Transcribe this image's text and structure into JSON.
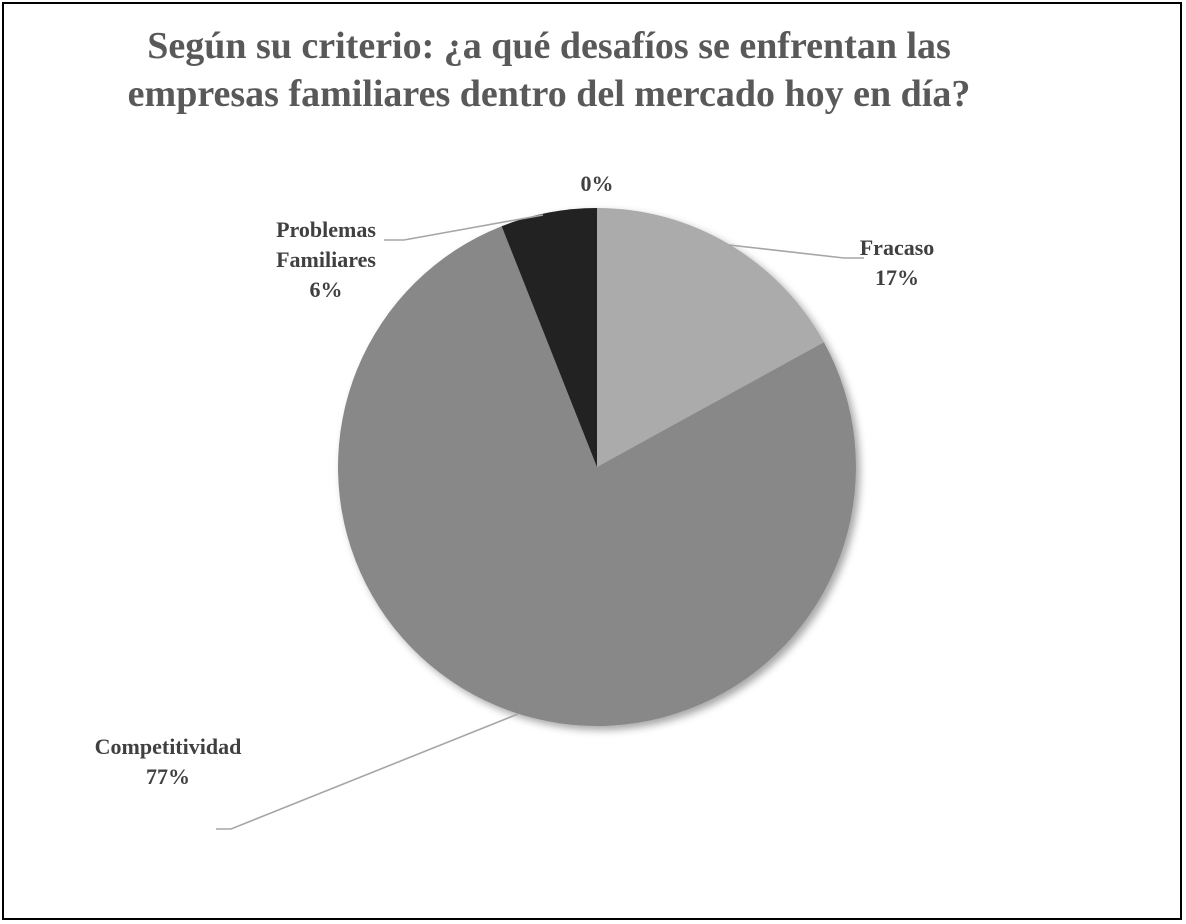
{
  "chart_data": {
    "type": "pie",
    "title_lines": [
      "Según su criterio: ¿a qué desafíos se enfrentan las",
      "empresas familiares dentro del mercado hoy en día?"
    ],
    "slices": [
      {
        "label": "Fracaso",
        "value": 17,
        "value_label": "17%",
        "color": "#ababab"
      },
      {
        "label": "Competitividad",
        "value": 77,
        "value_label": "77%",
        "color": "#888888"
      },
      {
        "label": "Problemas Familiares",
        "label_lines": [
          "Problemas",
          "Familiares"
        ],
        "value": 6,
        "value_label": "6%",
        "color": "#222222"
      },
      {
        "label": "",
        "value": 0,
        "value_label": "0%",
        "color": "#000000"
      }
    ],
    "legend": "none",
    "start_angle": "top, clockwise"
  }
}
